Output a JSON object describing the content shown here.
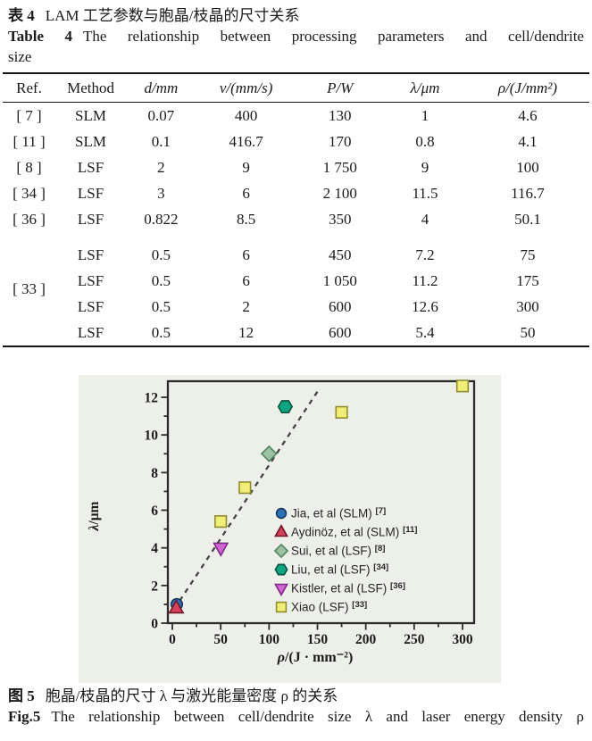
{
  "captions": {
    "table_cn": {
      "label": "表 4",
      "text": "LAM 工艺参数与胞晶/枝晶的尺寸关系"
    },
    "table_en": {
      "label": "Table 4",
      "text": "The relationship between processing parameters and cell/dendrite",
      "line2": "size"
    },
    "fig_cn": {
      "label": "图 5",
      "text": "胞晶/枝晶的尺寸 λ 与激光能量密度 ρ 的关系"
    },
    "fig_en": {
      "label": "Fig.5",
      "text": "The relationship between cell/dendrite size λ and laser energy density ρ"
    }
  },
  "table": {
    "columns": [
      "Ref.",
      "Method",
      "d/mm",
      "v/(mm/s)",
      "P/W",
      "λ/μm",
      "ρ/(J/mm²)"
    ],
    "col_widths": [
      "9%",
      "12%",
      "12%",
      "17%",
      "15%",
      "14%",
      "21%"
    ],
    "rows": [
      [
        "[ 7 ]",
        "SLM",
        "0.07",
        "400",
        "130",
        "1",
        "4.6"
      ],
      [
        "[ 11 ]",
        "SLM",
        "0.1",
        "416.7",
        "170",
        "0.8",
        "4.1"
      ],
      [
        "[ 8 ]",
        "LSF",
        "2",
        "9",
        "1 750",
        "9",
        "100"
      ],
      [
        "[ 34 ]",
        "LSF",
        "3",
        "6",
        "2 100",
        "11.5",
        "116.7"
      ],
      [
        "[ 36 ]",
        "LSF",
        "0.822",
        "8.5",
        "350",
        "4",
        "50.1"
      ]
    ],
    "group": {
      "label": "[ 33 ]",
      "rows": [
        [
          "LSF",
          "0.5",
          "6",
          "450",
          "7.2",
          "75"
        ],
        [
          "LSF",
          "0.5",
          "6",
          "1 050",
          "11.2",
          "175"
        ],
        [
          "LSF",
          "0.5",
          "2",
          "600",
          "12.6",
          "300"
        ],
        [
          "LSF",
          "0.5",
          "12",
          "600",
          "5.4",
          "50"
        ]
      ]
    }
  },
  "chart_data": {
    "type": "scatter",
    "xlabel": "ρ/(J · mm⁻²)",
    "ylabel": "λ/μm",
    "xlim": [
      0,
      312
    ],
    "ylim": [
      0,
      12.85
    ],
    "xticks": [
      0,
      50,
      100,
      150,
      200,
      250,
      300
    ],
    "x_minor_step": 25,
    "yticks": [
      0,
      2,
      4,
      6,
      8,
      10,
      12
    ],
    "y_minor_step": 1,
    "grid": false,
    "legend_position": "inside lower-right",
    "frame_color": "#2b2b2b",
    "background": "#edefe9",
    "series": [
      {
        "name": "Jia, et al (SLM)",
        "ref": "[7]",
        "marker": "circle",
        "fill": "#2a6fb8",
        "stroke": "#15395f",
        "points": [
          [
            4.6,
            1
          ]
        ]
      },
      {
        "name": "Aydinöz, et al (SLM)",
        "ref": "[11]",
        "marker": "triangle-up",
        "fill": "#d8415a",
        "stroke": "#701824",
        "points": [
          [
            4.1,
            0.8
          ]
        ]
      },
      {
        "name": "Sui, et al (LSF)",
        "ref": "[8]",
        "marker": "diamond",
        "fill": "#9cc2a4",
        "stroke": "#53855e",
        "points": [
          [
            100,
            9
          ]
        ]
      },
      {
        "name": "Liu, et al (LSF)",
        "ref": "[34]",
        "marker": "hexagon",
        "fill": "#0ba57f",
        "stroke": "#04523f",
        "points": [
          [
            116.7,
            11.5
          ]
        ]
      },
      {
        "name": "Kistler, et al (LSF)",
        "ref": "[36]",
        "marker": "triangle-down",
        "fill": "#d463d8",
        "stroke": "#7e2a86",
        "points": [
          [
            50.1,
            4
          ]
        ]
      },
      {
        "name": "Xiao (LSF)",
        "ref": "[33]",
        "marker": "square",
        "fill": "#f1ee76",
        "stroke": "#8e8e2e",
        "points": [
          [
            50,
            5.4
          ],
          [
            75,
            7.2
          ],
          [
            175,
            11.2
          ],
          [
            300,
            12.6
          ]
        ]
      }
    ],
    "trendline": {
      "style": "dashed",
      "x1": 2,
      "y1": 0.75,
      "x2": 150,
      "y2": 12.3,
      "color": "#454545"
    }
  }
}
